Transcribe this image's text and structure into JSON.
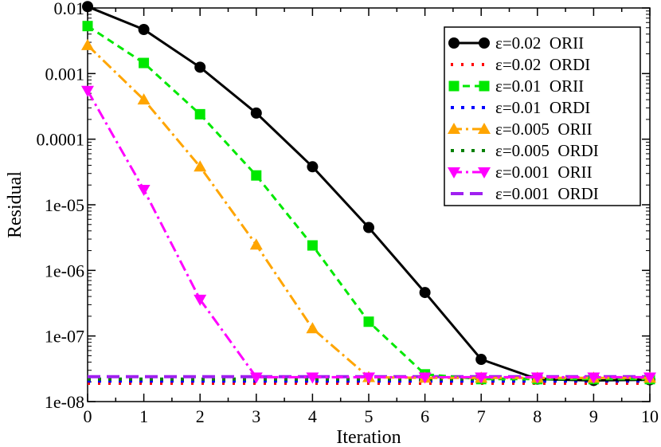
{
  "chart_data": {
    "type": "line",
    "title": "",
    "xlabel": "Iteration",
    "ylabel": "Residual",
    "xlim": [
      0,
      10
    ],
    "ylim": [
      1e-08,
      0.01
    ],
    "yscale": "log",
    "x_ticks": [
      "0",
      "1",
      "2",
      "3",
      "4",
      "5",
      "6",
      "7",
      "8",
      "9",
      "10"
    ],
    "y_ticks": [
      {
        "value": 0.01,
        "label": "0.01"
      },
      {
        "value": 0.001,
        "label": "0.001"
      },
      {
        "value": 0.0001,
        "label": "0.0001"
      },
      {
        "value": 1e-05,
        "label": "1e-05"
      },
      {
        "value": 1e-06,
        "label": "1e-06"
      },
      {
        "value": 1e-07,
        "label": "1e-07"
      },
      {
        "value": 1e-08,
        "label": "1e-08"
      }
    ],
    "legend_position": "top-right",
    "x": [
      0,
      1,
      2,
      3,
      4,
      5,
      6,
      7,
      8,
      9,
      10
    ],
    "series": [
      {
        "name": "ε=0.02  ORII",
        "color": "#000000",
        "dash": "",
        "marker": "circle",
        "values": [
          0.0105,
          0.0047,
          0.00125,
          0.00025,
          3.8e-05,
          4.5e-06,
          4.6e-07,
          4.4e-08,
          2.2e-08,
          2.1e-08,
          2.15e-08
        ]
      },
      {
        "name": "ε=0.02  ORDI",
        "color": "#ff0000",
        "dash": "3,10",
        "marker": "none",
        "values": [
          1.9e-08,
          1.9e-08,
          1.9e-08,
          1.9e-08,
          1.9e-08,
          1.9e-08,
          1.9e-08,
          1.9e-08,
          1.9e-08,
          1.9e-08,
          1.9e-08
        ]
      },
      {
        "name": "ε=0.01  ORII",
        "color": "#00e800",
        "dash": "9,6",
        "marker": "square",
        "values": [
          0.0053,
          0.00145,
          0.00024,
          2.8e-05,
          2.4e-06,
          1.65e-07,
          2.6e-08,
          2.2e-08,
          2.2e-08,
          2.2e-08,
          2.2e-08
        ]
      },
      {
        "name": "ε=0.01  ORDI",
        "color": "#0000ff",
        "dash": "4,9",
        "marker": "none",
        "values": [
          2.05e-08,
          2.05e-08,
          2.05e-08,
          2.05e-08,
          2.05e-08,
          2.05e-08,
          2.05e-08,
          2.05e-08,
          2.05e-08,
          2.05e-08,
          2.05e-08
        ]
      },
      {
        "name": "ε=0.005  ORII",
        "color": "#ffa500",
        "dash": "14,5,3,5",
        "marker": "triangle-up",
        "values": [
          0.0027,
          0.0004,
          3.8e-05,
          2.45e-06,
          1.3e-07,
          2.35e-08,
          2.3e-08,
          2.3e-08,
          2.3e-08,
          2.3e-08,
          2.3e-08
        ]
      },
      {
        "name": "ε=0.005  ORDI",
        "color": "#008000",
        "dash": "4,9",
        "marker": "none",
        "values": [
          2.2e-08,
          2.2e-08,
          2.2e-08,
          2.2e-08,
          2.2e-08,
          2.2e-08,
          2.2e-08,
          2.2e-08,
          2.2e-08,
          2.2e-08,
          2.2e-08
        ]
      },
      {
        "name": "ε=0.001  ORII",
        "color": "#ff00ff",
        "dash": "14,5,3,5",
        "marker": "triangle-down",
        "values": [
          0.00055,
          1.7e-05,
          3.6e-07,
          2.35e-08,
          2.35e-08,
          2.35e-08,
          2.35e-08,
          2.35e-08,
          2.35e-08,
          2.35e-08,
          2.35e-08
        ]
      },
      {
        "name": "ε=0.001  ORDI",
        "color": "#a020f0",
        "dash": "16,8",
        "marker": "none",
        "values": [
          2.4e-08,
          2.4e-08,
          2.4e-08,
          2.4e-08,
          2.4e-08,
          2.4e-08,
          2.4e-08,
          2.4e-08,
          2.4e-08,
          2.4e-08,
          2.4e-08
        ]
      }
    ]
  }
}
